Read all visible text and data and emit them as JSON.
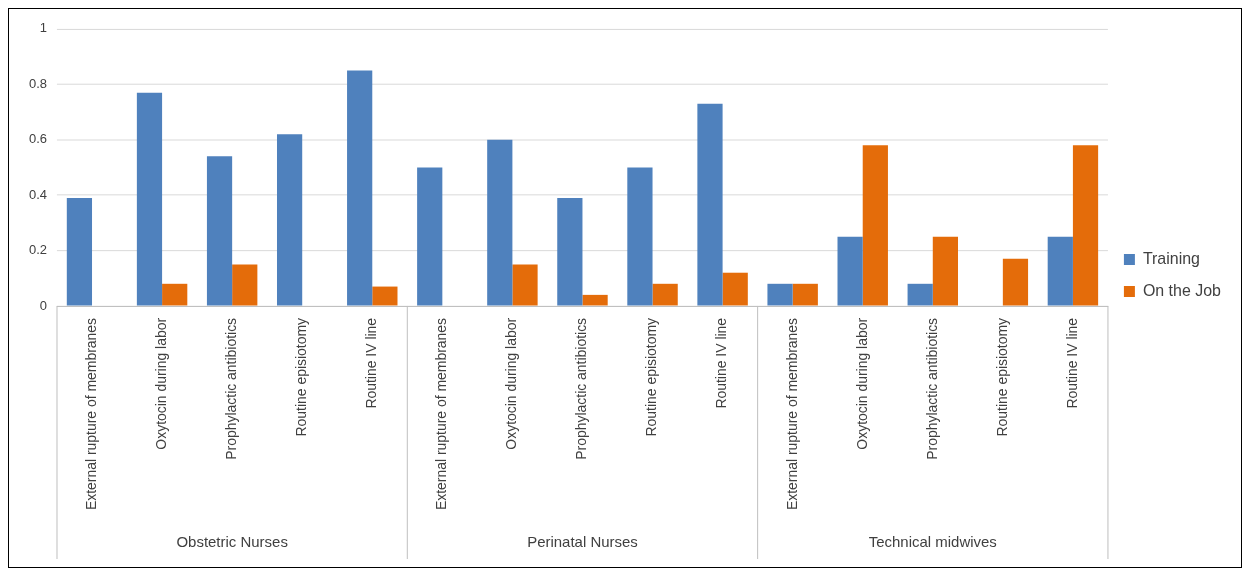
{
  "chart_data": {
    "type": "bar",
    "categories": [
      "External rupture of membranes",
      "Oxytocin during labor",
      "Prophylactic antibiotics",
      "Routine episiotomy",
      "Routine IV line",
      "External rupture of membranes",
      "Oxytocin during labor",
      "Prophylactic antibiotics",
      "Routine episiotomy",
      "Routine IV line",
      "External rupture of membranes",
      "Oxytocin during labor",
      "Prophylactic antibiotics",
      "Routine episiotomy",
      "Routine IV line"
    ],
    "series": [
      {
        "name": "Training",
        "color": "#4f81bd",
        "values": [
          0.39,
          0.77,
          0.54,
          0.62,
          0.85,
          0.5,
          0.6,
          0.39,
          0.5,
          0.73,
          0.08,
          0.25,
          0.08,
          0,
          0.25
        ]
      },
      {
        "name": "On the Job",
        "color": "#e46c0a",
        "values": [
          0,
          0.08,
          0.15,
          0,
          0.07,
          0,
          0.15,
          0.04,
          0.08,
          0.12,
          0.08,
          0.58,
          0.25,
          0.17,
          0.58
        ]
      }
    ],
    "annotations": [
      "Obstetric Nurses",
      "Perinatal Nurses",
      "Technical midwives"
    ],
    "ylim": [
      0,
      1
    ],
    "yticks": [
      0,
      0.2,
      0.4,
      0.6,
      0.8,
      1
    ],
    "grid": "y",
    "legend": "right"
  }
}
